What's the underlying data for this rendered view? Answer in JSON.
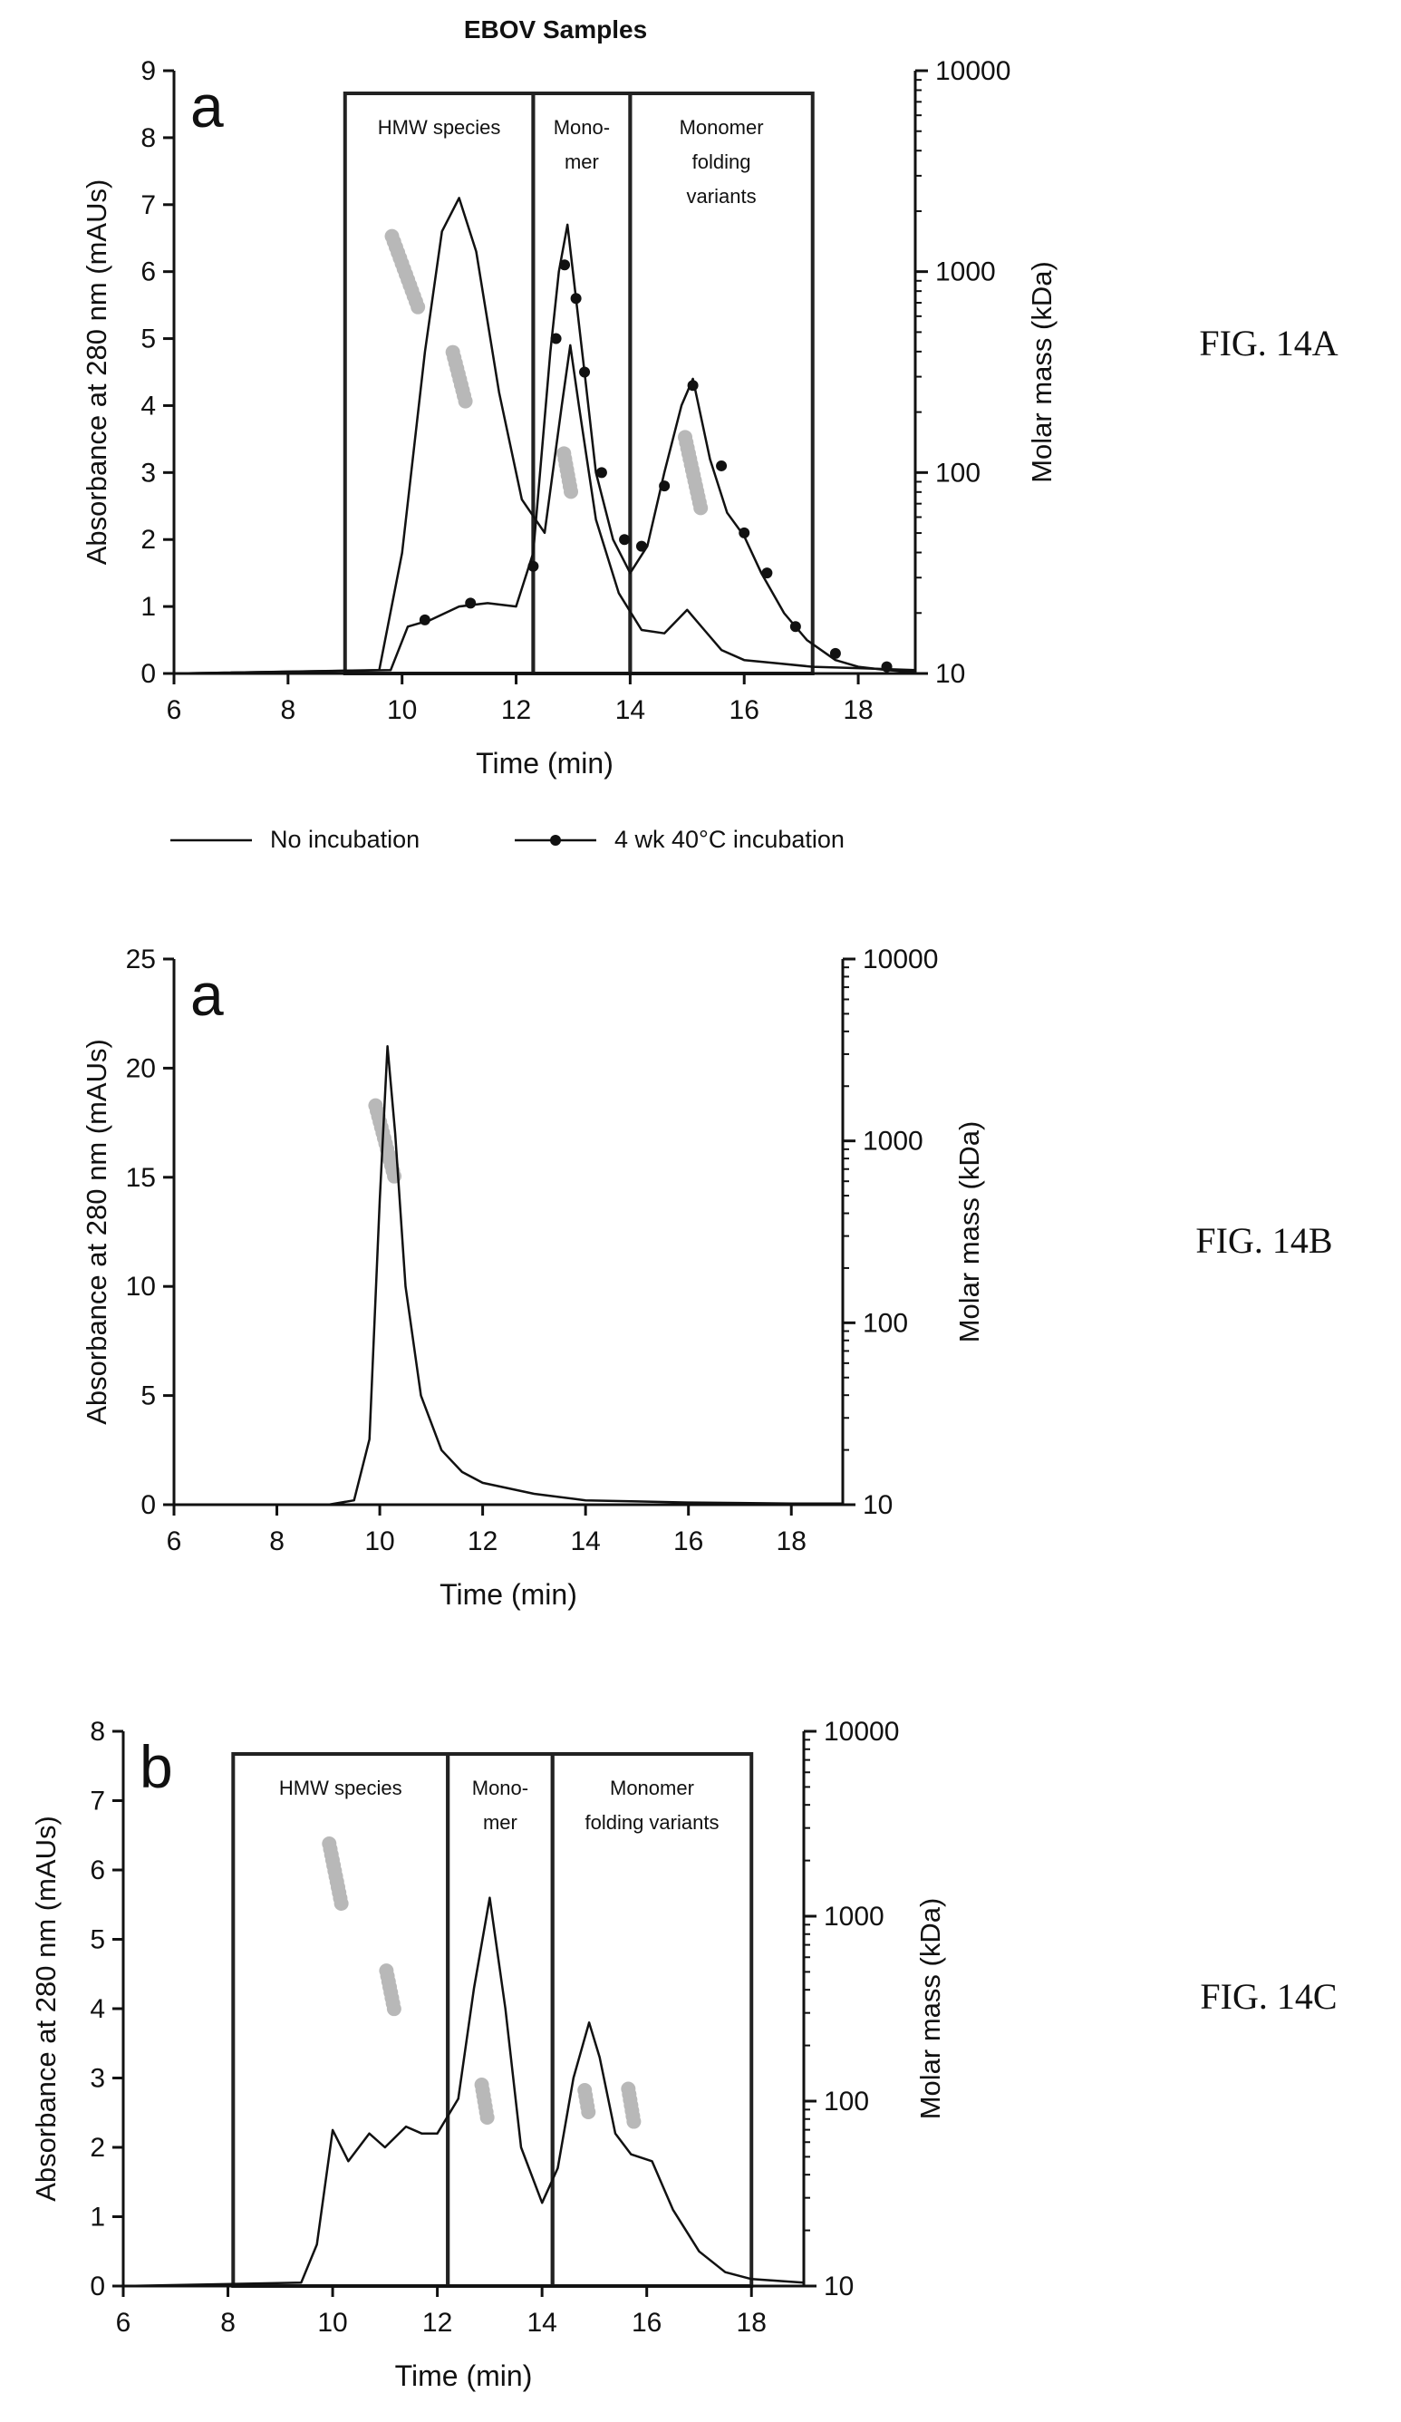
{
  "page_title": "EBOV Samples",
  "chart_data": [
    {
      "type": "line",
      "figure_label": "FIG. 14A",
      "panel_letter": "a",
      "title": "EBOV Samples",
      "xlabel": "Time (min)",
      "ylabel": "Absorbance at 280 nm (mAUs)",
      "y2label": "Molar mass (kDa)",
      "xlim": [
        6,
        19
      ],
      "ylim": [
        0,
        9
      ],
      "y2lim": [
        10,
        10000
      ],
      "y2scale": "log",
      "xticks": [
        "6",
        "8",
        "10",
        "12",
        "14",
        "16",
        "18"
      ],
      "yticks": [
        "0",
        "1",
        "2",
        "3",
        "4",
        "5",
        "6",
        "7",
        "8",
        "9"
      ],
      "y2ticks": [
        "10",
        "100",
        "1000",
        "10000"
      ],
      "legend_position": "bottom",
      "regions": [
        {
          "x0": 9.0,
          "x1": 12.3,
          "label_lines": [
            "HMW species"
          ]
        },
        {
          "x0": 12.3,
          "x1": 14.0,
          "label_lines": [
            "Mono-",
            "mer"
          ]
        },
        {
          "x0": 14.0,
          "x1": 17.2,
          "label_lines": [
            "Monomer",
            "folding",
            "variants"
          ]
        }
      ],
      "series": [
        {
          "name": "No incubation",
          "marker": "none",
          "x": [
            6,
            9.6,
            10.0,
            10.4,
            10.7,
            11.0,
            11.3,
            11.7,
            12.1,
            12.5,
            12.8,
            12.95,
            13.1,
            13.4,
            13.8,
            14.2,
            14.6,
            15.0,
            15.3,
            15.6,
            16.0,
            16.6,
            17.2,
            18.0,
            19.0
          ],
          "y": [
            0,
            0.05,
            1.8,
            4.8,
            6.6,
            7.1,
            6.3,
            4.2,
            2.6,
            2.1,
            4.0,
            4.9,
            4.0,
            2.3,
            1.2,
            0.65,
            0.6,
            0.95,
            0.65,
            0.35,
            0.2,
            0.15,
            0.1,
            0.08,
            0.05
          ]
        },
        {
          "name": "4 wk 40°C incubation",
          "marker": "circle",
          "x": [
            6,
            9.8,
            10.1,
            10.5,
            11.0,
            11.5,
            12.0,
            12.3,
            12.6,
            12.75,
            12.9,
            13.05,
            13.2,
            13.4,
            13.7,
            14.0,
            14.3,
            14.6,
            14.9,
            15.1,
            15.4,
            15.7,
            16.0,
            16.3,
            16.7,
            17.1,
            17.6,
            18.0,
            18.5,
            19.0
          ],
          "y": [
            0,
            0.05,
            0.7,
            0.8,
            1.0,
            1.05,
            1.0,
            1.8,
            4.8,
            6.0,
            6.7,
            5.6,
            4.5,
            3.0,
            2.0,
            1.5,
            1.9,
            3.0,
            4.0,
            4.4,
            3.2,
            2.4,
            2.05,
            1.5,
            0.9,
            0.5,
            0.2,
            0.1,
            0.05,
            0.02
          ],
          "marker_x": [
            10.4,
            11.2,
            12.3,
            12.7,
            12.85,
            13.05,
            13.2,
            13.5,
            13.9,
            14.2,
            14.6,
            15.1,
            15.6,
            16.0,
            16.4,
            16.9,
            17.6,
            18.5
          ],
          "marker_y": [
            0.8,
            1.05,
            1.6,
            5.0,
            6.1,
            5.6,
            4.5,
            3.0,
            2.0,
            1.9,
            2.8,
            4.3,
            3.1,
            2.1,
            1.5,
            0.7,
            0.3,
            0.1
          ]
        }
      ],
      "mass_points": [
        {
          "x": 10.05,
          "mass": 1000,
          "count": 14,
          "dx": 0.1
        },
        {
          "x": 11.0,
          "mass": 300,
          "count": 10,
          "dx": 0.07
        },
        {
          "x": 12.9,
          "mass": 100,
          "count": 8,
          "dx": 0.05
        },
        {
          "x": 15.1,
          "mass": 100,
          "count": 14,
          "dx": 0.06
        }
      ]
    },
    {
      "type": "line",
      "figure_label": "FIG. 14B",
      "panel_letter": "a",
      "title": "",
      "xlabel": "Time (min)",
      "ylabel": "Absorbance at 280 nm (mAUs)",
      "y2label": "Molar mass (kDa)",
      "xlim": [
        6,
        19
      ],
      "ylim": [
        0,
        25
      ],
      "y2lim": [
        10,
        10000
      ],
      "y2scale": "log",
      "xticks": [
        "6",
        "8",
        "10",
        "12",
        "14",
        "16",
        "18"
      ],
      "yticks": [
        "0",
        "5",
        "10",
        "15",
        "20",
        "25"
      ],
      "y2ticks": [
        "10",
        "100",
        "1000",
        "10000"
      ],
      "regions": [],
      "series": [
        {
          "name": "",
          "marker": "none",
          "x": [
            6,
            9.0,
            9.5,
            9.8,
            10.0,
            10.15,
            10.3,
            10.5,
            10.8,
            11.2,
            11.6,
            12.0,
            13.0,
            14.0,
            15.0,
            16.0,
            17.0,
            18.0,
            19.0
          ],
          "y": [
            0,
            0,
            0.2,
            3.0,
            14.0,
            21.0,
            17.0,
            10.0,
            5.0,
            2.5,
            1.5,
            1.0,
            0.5,
            0.2,
            0.15,
            0.1,
            0.08,
            0.05,
            0.05
          ]
        }
      ],
      "mass_points": [
        {
          "x": 10.1,
          "mass": 1000,
          "count": 14,
          "dx": 0.08
        }
      ]
    },
    {
      "type": "line",
      "figure_label": "FIG. 14C",
      "panel_letter": "b",
      "title": "",
      "xlabel": "Time (min)",
      "ylabel": "Absorbance at 280 nm (mAUs)",
      "y2label": "Molar mass (kDa)",
      "xlim": [
        6,
        19
      ],
      "ylim": [
        0,
        8
      ],
      "y2lim": [
        10,
        10000
      ],
      "y2scale": "log",
      "xticks": [
        "6",
        "8",
        "10",
        "12",
        "14",
        "16",
        "18"
      ],
      "yticks": [
        "0",
        "1",
        "2",
        "3",
        "4",
        "5",
        "6",
        "7",
        "8"
      ],
      "y2ticks": [
        "10",
        "100",
        "1000",
        "10000"
      ],
      "regions": [
        {
          "x0": 8.1,
          "x1": 12.2,
          "label_lines": [
            "HMW species"
          ]
        },
        {
          "x0": 12.2,
          "x1": 14.2,
          "label_lines": [
            "Mono-",
            "mer"
          ]
        },
        {
          "x0": 14.2,
          "x1": 18.0,
          "label_lines": [
            "Monomer",
            "folding variants"
          ]
        }
      ],
      "series": [
        {
          "name": "",
          "marker": "none",
          "x": [
            6,
            9.4,
            9.7,
            10.0,
            10.3,
            10.7,
            11.0,
            11.4,
            11.7,
            12.0,
            12.4,
            12.7,
            13.0,
            13.3,
            13.6,
            14.0,
            14.3,
            14.6,
            14.9,
            15.1,
            15.4,
            15.7,
            16.1,
            16.5,
            17.0,
            17.5,
            18.0,
            19.0
          ],
          "y": [
            0,
            0.05,
            0.6,
            2.25,
            1.8,
            2.2,
            2.0,
            2.3,
            2.2,
            2.2,
            2.7,
            4.3,
            5.6,
            4.0,
            2.0,
            1.2,
            1.7,
            3.0,
            3.8,
            3.3,
            2.2,
            1.9,
            1.8,
            1.1,
            0.5,
            0.2,
            0.1,
            0.05
          ]
        }
      ],
      "mass_points": [
        {
          "x": 10.05,
          "mass": 1700,
          "count": 12,
          "dx": 0.06
        },
        {
          "x": 11.1,
          "mass": 400,
          "count": 8,
          "dx": 0.06
        },
        {
          "x": 12.9,
          "mass": 100,
          "count": 7,
          "dx": 0.05
        },
        {
          "x": 14.85,
          "mass": 100,
          "count": 5,
          "dx": 0.05
        },
        {
          "x": 15.7,
          "mass": 95,
          "count": 7,
          "dx": 0.05
        }
      ]
    }
  ],
  "colors": {
    "line": "#111111",
    "axis": "#111111",
    "region_border": "#222222",
    "mass_point": "#b8b8b8"
  }
}
